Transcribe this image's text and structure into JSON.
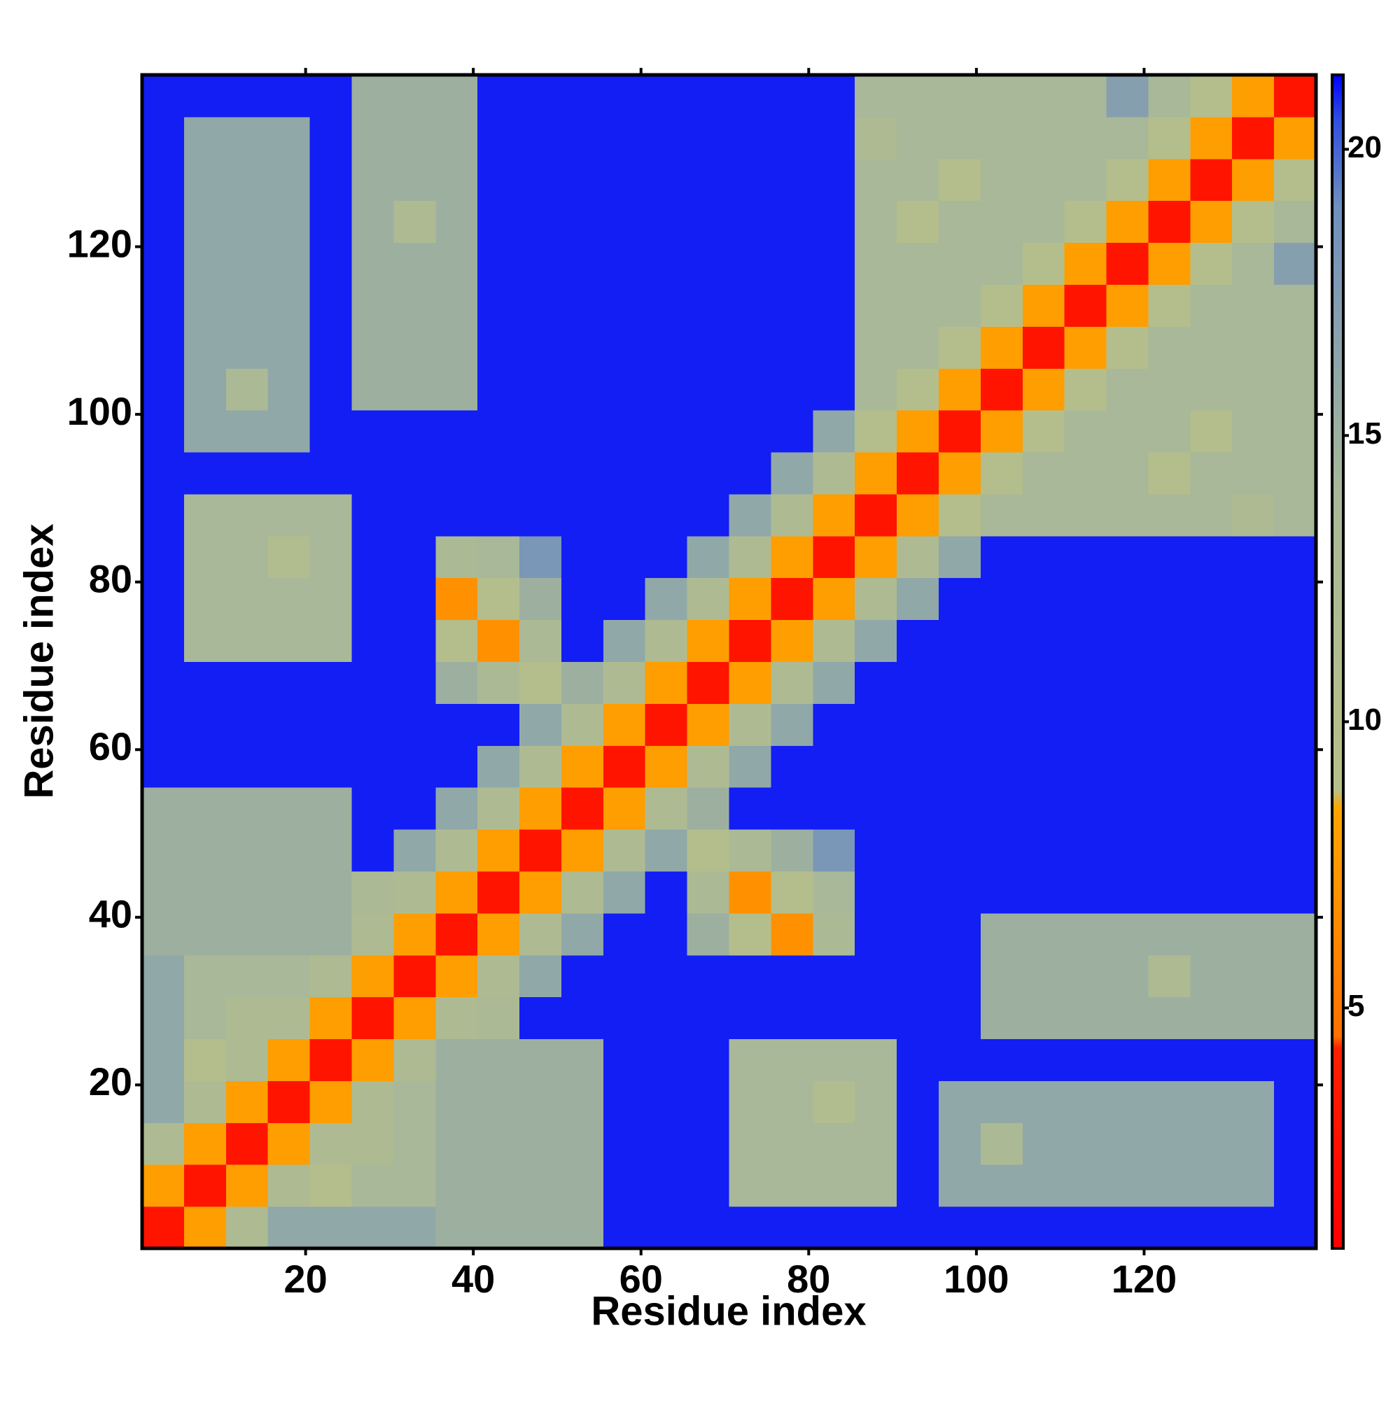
{
  "chart_data": {
    "type": "heatmap",
    "xlabel": "Residue index",
    "ylabel": "Residue index",
    "x": [
      3,
      8,
      13,
      18,
      23,
      28,
      33,
      38,
      43,
      48,
      53,
      58,
      63,
      68,
      73,
      78,
      83,
      88,
      93,
      98,
      103,
      108,
      113,
      118,
      123,
      128,
      133,
      138
    ],
    "y": [
      3,
      8,
      13,
      18,
      23,
      28,
      33,
      38,
      43,
      48,
      53,
      58,
      63,
      68,
      73,
      78,
      83,
      88,
      93,
      98,
      103,
      108,
      113,
      118,
      123,
      128,
      133,
      138
    ],
    "xlim": [
      0.5,
      140.5
    ],
    "ylim": [
      0.5,
      140.5
    ],
    "xticks": [
      20,
      40,
      60,
      80,
      100,
      120
    ],
    "yticks": [
      20,
      40,
      60,
      80,
      100,
      120
    ],
    "clim": [
      0.8,
      21.3
    ],
    "cticks": [
      5,
      10,
      15,
      20
    ],
    "colorscale": [
      [
        0.8,
        "#ff0000"
      ],
      [
        4.3,
        "#ff2000"
      ],
      [
        4.5,
        "#ff7000"
      ],
      [
        8.5,
        "#ffa500"
      ],
      [
        8.8,
        "#b8c088"
      ],
      [
        14,
        "#a8b898"
      ],
      [
        19,
        "#6f8fbf"
      ],
      [
        20.5,
        "#3050e0"
      ],
      [
        21.3,
        "#0000ff"
      ]
    ],
    "z": [
      [
        3,
        8,
        12,
        16,
        16,
        16,
        16,
        15,
        15,
        15,
        15,
        21,
        21,
        21,
        21,
        21,
        21,
        21,
        21,
        21,
        21,
        21,
        21,
        21,
        21,
        21,
        21,
        21
      ],
      [
        8,
        3,
        8,
        12,
        10,
        14,
        14,
        15,
        15,
        15,
        15,
        21,
        21,
        21,
        14,
        14,
        14,
        14,
        21,
        16,
        16,
        16,
        16,
        16,
        16,
        16,
        16,
        21
      ],
      [
        12,
        8,
        3,
        8,
        12,
        12,
        14,
        15,
        15,
        15,
        15,
        21,
        21,
        21,
        14,
        14,
        14,
        14,
        21,
        16,
        13,
        16,
        16,
        16,
        16,
        16,
        16,
        21
      ],
      [
        16,
        12,
        8,
        3,
        8,
        12,
        14,
        15,
        15,
        15,
        15,
        21,
        21,
        21,
        14,
        14,
        11,
        14,
        21,
        16,
        16,
        16,
        16,
        16,
        16,
        16,
        16,
        21
      ],
      [
        16,
        10,
        12,
        8,
        3,
        8,
        12,
        15,
        15,
        15,
        15,
        21,
        21,
        21,
        14,
        14,
        14,
        14,
        21,
        21,
        21,
        21,
        21,
        21,
        21,
        21,
        21,
        21
      ],
      [
        16,
        14,
        12,
        12,
        8,
        3,
        8,
        12,
        13,
        21,
        21,
        21,
        21,
        21,
        21,
        21,
        21,
        21,
        21,
        21,
        15,
        15,
        15,
        15,
        15,
        15,
        15,
        15
      ],
      [
        16,
        14,
        14,
        14,
        12,
        8,
        3,
        8,
        12,
        16,
        21,
        21,
        21,
        21,
        21,
        21,
        21,
        21,
        21,
        21,
        15,
        15,
        15,
        15,
        12,
        15,
        15,
        15
      ],
      [
        15,
        15,
        15,
        15,
        15,
        12,
        8,
        3,
        8,
        12,
        16,
        21,
        21,
        15,
        10,
        7,
        13,
        21,
        21,
        21,
        15,
        15,
        15,
        15,
        15,
        15,
        15,
        15
      ],
      [
        15,
        15,
        15,
        15,
        15,
        13,
        12,
        8,
        3,
        8,
        12,
        16,
        21,
        13,
        7,
        10,
        14,
        21,
        21,
        21,
        21,
        21,
        21,
        21,
        21,
        21,
        21,
        21
      ],
      [
        15,
        15,
        15,
        15,
        15,
        21,
        16,
        12,
        8,
        3,
        8,
        12,
        16,
        10,
        13,
        15,
        18,
        21,
        21,
        21,
        21,
        21,
        21,
        21,
        21,
        21,
        21,
        21
      ],
      [
        15,
        15,
        15,
        15,
        15,
        21,
        21,
        16,
        12,
        8,
        3,
        8,
        12,
        15,
        21,
        21,
        21,
        21,
        21,
        21,
        21,
        21,
        21,
        21,
        21,
        21,
        21,
        21
      ],
      [
        21,
        21,
        21,
        21,
        21,
        21,
        21,
        21,
        16,
        12,
        8,
        3,
        8,
        12,
        16,
        21,
        21,
        21,
        21,
        21,
        21,
        21,
        21,
        21,
        21,
        21,
        21,
        21
      ],
      [
        21,
        21,
        21,
        21,
        21,
        21,
        21,
        21,
        21,
        16,
        12,
        8,
        3,
        8,
        12,
        16,
        21,
        21,
        21,
        21,
        21,
        21,
        21,
        21,
        21,
        21,
        21,
        21
      ],
      [
        21,
        21,
        21,
        21,
        21,
        21,
        21,
        15,
        13,
        10,
        15,
        12,
        8,
        3,
        8,
        12,
        16,
        21,
        21,
        21,
        21,
        21,
        21,
        21,
        21,
        21,
        21,
        21
      ],
      [
        21,
        14,
        14,
        14,
        14,
        21,
        21,
        10,
        7,
        13,
        21,
        16,
        12,
        8,
        3,
        8,
        12,
        16,
        21,
        21,
        21,
        21,
        21,
        21,
        21,
        21,
        21,
        21
      ],
      [
        21,
        14,
        14,
        14,
        14,
        21,
        21,
        7,
        10,
        15,
        21,
        21,
        16,
        12,
        8,
        3,
        8,
        12,
        16,
        21,
        21,
        21,
        21,
        21,
        21,
        21,
        21,
        21
      ],
      [
        21,
        14,
        14,
        11,
        14,
        21,
        21,
        13,
        14,
        18,
        21,
        21,
        21,
        16,
        12,
        8,
        3,
        8,
        12,
        16,
        21,
        21,
        21,
        21,
        21,
        21,
        21,
        21
      ],
      [
        21,
        14,
        14,
        14,
        14,
        21,
        21,
        21,
        21,
        21,
        21,
        21,
        21,
        21,
        16,
        12,
        8,
        3,
        8,
        10,
        14,
        14,
        14,
        14,
        14,
        14,
        12,
        14
      ],
      [
        21,
        21,
        21,
        21,
        21,
        21,
        21,
        21,
        21,
        21,
        21,
        21,
        21,
        21,
        21,
        16,
        12,
        8,
        3,
        8,
        10,
        14,
        14,
        14,
        10,
        14,
        14,
        14
      ],
      [
        21,
        16,
        16,
        16,
        21,
        21,
        21,
        21,
        21,
        21,
        21,
        21,
        21,
        21,
        21,
        21,
        16,
        10,
        8,
        3,
        8,
        10,
        14,
        14,
        14,
        10,
        14,
        14
      ],
      [
        21,
        16,
        13,
        16,
        21,
        15,
        15,
        15,
        21,
        21,
        21,
        21,
        21,
        21,
        21,
        21,
        21,
        14,
        10,
        8,
        3,
        8,
        10,
        14,
        14,
        14,
        14,
        14
      ],
      [
        21,
        16,
        16,
        16,
        21,
        15,
        15,
        15,
        21,
        21,
        21,
        21,
        21,
        21,
        21,
        21,
        21,
        14,
        14,
        10,
        8,
        3,
        8,
        10,
        14,
        14,
        14,
        14
      ],
      [
        21,
        16,
        16,
        16,
        21,
        15,
        15,
        15,
        21,
        21,
        21,
        21,
        21,
        21,
        21,
        21,
        21,
        14,
        14,
        14,
        10,
        8,
        3,
        8,
        10,
        14,
        14,
        14
      ],
      [
        21,
        16,
        16,
        16,
        21,
        15,
        15,
        15,
        21,
        21,
        21,
        21,
        21,
        21,
        21,
        21,
        21,
        14,
        14,
        14,
        14,
        10,
        8,
        3,
        8,
        10,
        14,
        17
      ],
      [
        21,
        16,
        16,
        16,
        21,
        15,
        12,
        15,
        21,
        21,
        21,
        21,
        21,
        21,
        21,
        21,
        21,
        14,
        10,
        14,
        14,
        14,
        10,
        8,
        3,
        8,
        10,
        14
      ],
      [
        21,
        16,
        16,
        16,
        21,
        15,
        15,
        15,
        21,
        21,
        21,
        21,
        21,
        21,
        21,
        21,
        21,
        14,
        14,
        10,
        14,
        14,
        14,
        10,
        8,
        3,
        8,
        10
      ],
      [
        21,
        16,
        16,
        16,
        21,
        15,
        15,
        15,
        21,
        21,
        21,
        21,
        21,
        21,
        21,
        21,
        21,
        12,
        14,
        14,
        14,
        14,
        14,
        14,
        10,
        8,
        3,
        8
      ],
      [
        21,
        21,
        21,
        21,
        21,
        15,
        15,
        15,
        21,
        21,
        21,
        21,
        21,
        21,
        21,
        21,
        21,
        14,
        14,
        14,
        14,
        14,
        14,
        17,
        14,
        10,
        8,
        3
      ]
    ]
  }
}
